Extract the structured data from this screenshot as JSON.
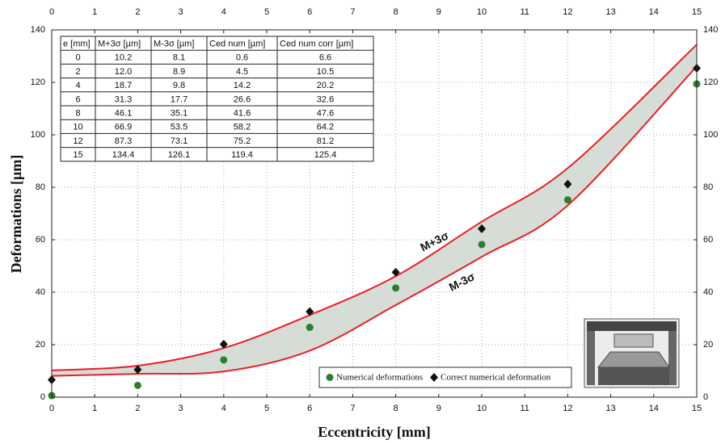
{
  "chart_data": {
    "type": "line",
    "x_label": "Eccentricity [mm]",
    "y_label": "Deformations [µm]",
    "x": [
      0,
      2,
      4,
      6,
      8,
      10,
      12,
      15
    ],
    "series": [
      {
        "name": "M+3σ",
        "color": "#e8202a",
        "kind": "band-edge",
        "values": [
          10.2,
          12.0,
          18.7,
          31.3,
          46.1,
          66.9,
          87.3,
          134.4
        ]
      },
      {
        "name": "M-3σ",
        "color": "#e8202a",
        "kind": "band-edge",
        "values": [
          8.1,
          8.9,
          9.8,
          17.7,
          35.1,
          53.5,
          73.1,
          126.1
        ]
      },
      {
        "name": "Numerical deformations",
        "color": "#2e7d2e",
        "kind": "circle",
        "values": [
          0.6,
          4.5,
          14.2,
          26.6,
          41.6,
          58.2,
          75.2,
          119.4
        ]
      },
      {
        "name": "Correct numerical deformation",
        "color": "#111111",
        "kind": "diamond",
        "values": [
          6.6,
          10.5,
          20.2,
          32.6,
          47.6,
          64.2,
          81.2,
          125.4
        ]
      }
    ],
    "band_color": "#d6dcd6",
    "xlim": [
      0,
      15
    ],
    "xticks": [
      0,
      1,
      2,
      3,
      4,
      5,
      6,
      7,
      8,
      9,
      10,
      11,
      12,
      13,
      14,
      15
    ],
    "ylim": [
      0,
      140
    ],
    "yticks": [
      0,
      20,
      40,
      60,
      80,
      100,
      120,
      140
    ],
    "grid": true,
    "table": {
      "columns": [
        "e [mm]",
        "M+3σ [µm]",
        "M-3σ [µm]",
        "Ced num [µm]",
        "Ced num corr [µm]"
      ],
      "rows": [
        [
          "0",
          "10.2",
          "8.1",
          "0.6",
          "6.6"
        ],
        [
          "2",
          "12.0",
          "8.9",
          "4.5",
          "10.5"
        ],
        [
          "4",
          "18.7",
          "9.8",
          "14.2",
          "20.2"
        ],
        [
          "6",
          "31.3",
          "17.7",
          "26.6",
          "32.6"
        ],
        [
          "8",
          "46.1",
          "35.1",
          "41.6",
          "47.6"
        ],
        [
          "10",
          "66.9",
          "53.5",
          "58.2",
          "64.2"
        ],
        [
          "12",
          "87.3",
          "73.1",
          "75.2",
          "81.2"
        ],
        [
          "15",
          "134.4",
          "126.1",
          "119.4",
          "125.4"
        ]
      ]
    }
  }
}
